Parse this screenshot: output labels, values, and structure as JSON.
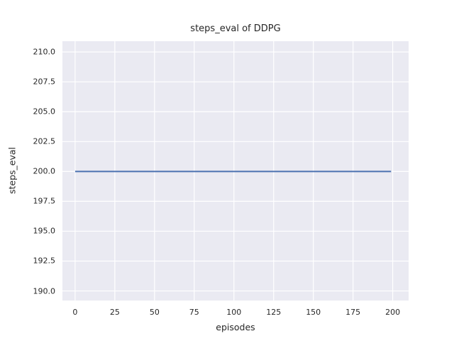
{
  "chart_data": {
    "type": "line",
    "title": "steps_eval of DDPG",
    "xlabel": "episodes",
    "ylabel": "steps_eval",
    "xticks": [
      0,
      25,
      50,
      75,
      100,
      125,
      150,
      175,
      200
    ],
    "xtick_labels": [
      "0",
      "25",
      "50",
      "75",
      "100",
      "125",
      "150",
      "175",
      "200"
    ],
    "yticks": [
      190.0,
      192.5,
      195.0,
      197.5,
      200.0,
      202.5,
      205.0,
      207.5,
      210.0
    ],
    "ytick_labels": [
      "190.0",
      "192.5",
      "195.0",
      "197.5",
      "200.0",
      "202.5",
      "205.0",
      "207.5",
      "210.0"
    ],
    "xlim": [
      -8,
      210
    ],
    "ylim": [
      189.2,
      210.9
    ],
    "grid": true,
    "legend": "none",
    "plot_bg_color": "#eaeaf2",
    "grid_color": "#ffffff",
    "text_color": "#262626",
    "series": [
      {
        "name": "steps_eval of DDPG",
        "color": "#4c72b0",
        "x": [
          0,
          199
        ],
        "y": [
          200,
          200
        ],
        "note": "constant flat line at steps_eval = 200 for all episodes 0-199"
      }
    ]
  }
}
